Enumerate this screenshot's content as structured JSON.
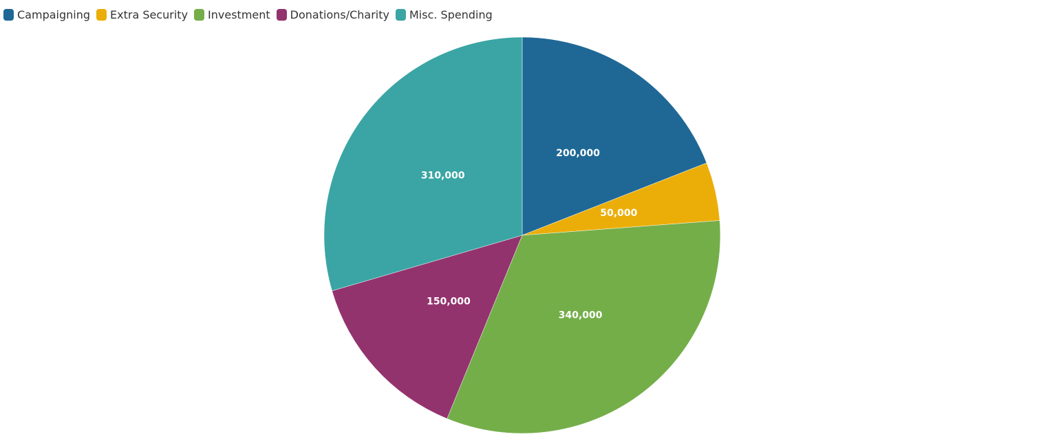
{
  "chart_data": {
    "type": "pie",
    "title": "",
    "legend_position": "top-left",
    "slices": [
      {
        "name": "Campaigning",
        "value": 200000,
        "label": "200,000",
        "color": "#1f6896"
      },
      {
        "name": "Extra Security",
        "value": 50000,
        "label": "50,000",
        "color": "#ebae09"
      },
      {
        "name": "Investment",
        "value": 340000,
        "label": "340,000",
        "color": "#74ae49"
      },
      {
        "name": "Donations/Charity",
        "value": 150000,
        "label": "150,000",
        "color": "#93336e"
      },
      {
        "name": "Misc. Spending",
        "value": 310000,
        "label": "310,000",
        "color": "#3aa5a4"
      }
    ]
  }
}
